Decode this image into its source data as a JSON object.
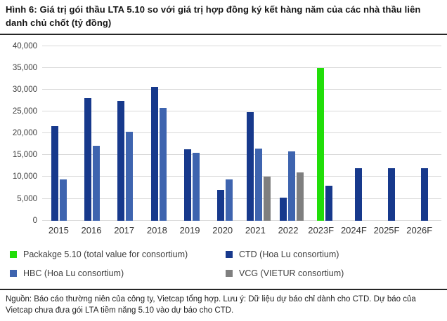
{
  "title": "Hình 6: Giá trị gói thầu LTA 5.10 so với giá trị hợp đồng ký kết hàng năm của các nhà thầu liên danh chủ chốt (tỷ đồng)",
  "footer_note": "Nguồn: Báo cáo thường niên của công ty, Vietcap tổng hợp. Lưu ý: Dữ liệu dự báo chỉ dành cho CTD. Dự báo của Vietcap chưa đưa gói LTA tiềm năng 5.10 vào dự báo cho CTD.",
  "chart_data": {
    "type": "bar",
    "title": "Hình 6: Giá trị gói thầu LTA 5.10 so với giá trị hợp đồng ký kết hàng năm của các nhà thầu liên danh chủ chốt (tỷ đồng)",
    "unit": "tỷ đồng",
    "categories": [
      "2015",
      "2016",
      "2017",
      "2018",
      "2019",
      "2020",
      "2021",
      "2022",
      "2023F",
      "2024F",
      "2025F",
      "2026F"
    ],
    "series": [
      {
        "key": "package510",
        "name": "Packakge 5.10 (total value for consortium)",
        "color": "#21de09",
        "values": [
          null,
          null,
          null,
          null,
          null,
          null,
          null,
          null,
          35000,
          null,
          null,
          null
        ]
      },
      {
        "key": "ctd",
        "name": "CTD  (Hoa Lu consortium)",
        "color": "#17398c",
        "values": [
          21700,
          28000,
          27500,
          30700,
          16400,
          7000,
          24900,
          5300,
          8000,
          12000,
          12000,
          12000
        ]
      },
      {
        "key": "hbc",
        "name": "HBC (Hoa Lu consortium)",
        "color": "#3e64af",
        "values": [
          9400,
          17100,
          20400,
          25800,
          15500,
          9500,
          16500,
          15900,
          null,
          null,
          null,
          null
        ]
      },
      {
        "key": "vcg",
        "name": "VCG (VIETUR consortium)",
        "color": "#7f7f7f",
        "values": [
          null,
          null,
          null,
          null,
          null,
          null,
          10000,
          11000,
          null,
          null,
          null,
          null
        ]
      }
    ],
    "ylim": [
      0,
      40000
    ],
    "ytick_step": 5000,
    "ytick_labels": [
      "0",
      "5,000",
      "10,000",
      "15,000",
      "20,000",
      "25,000",
      "30,000",
      "35,000",
      "40,000"
    ],
    "grid": true,
    "legend_position": "bottom",
    "legend_columns": 2
  }
}
